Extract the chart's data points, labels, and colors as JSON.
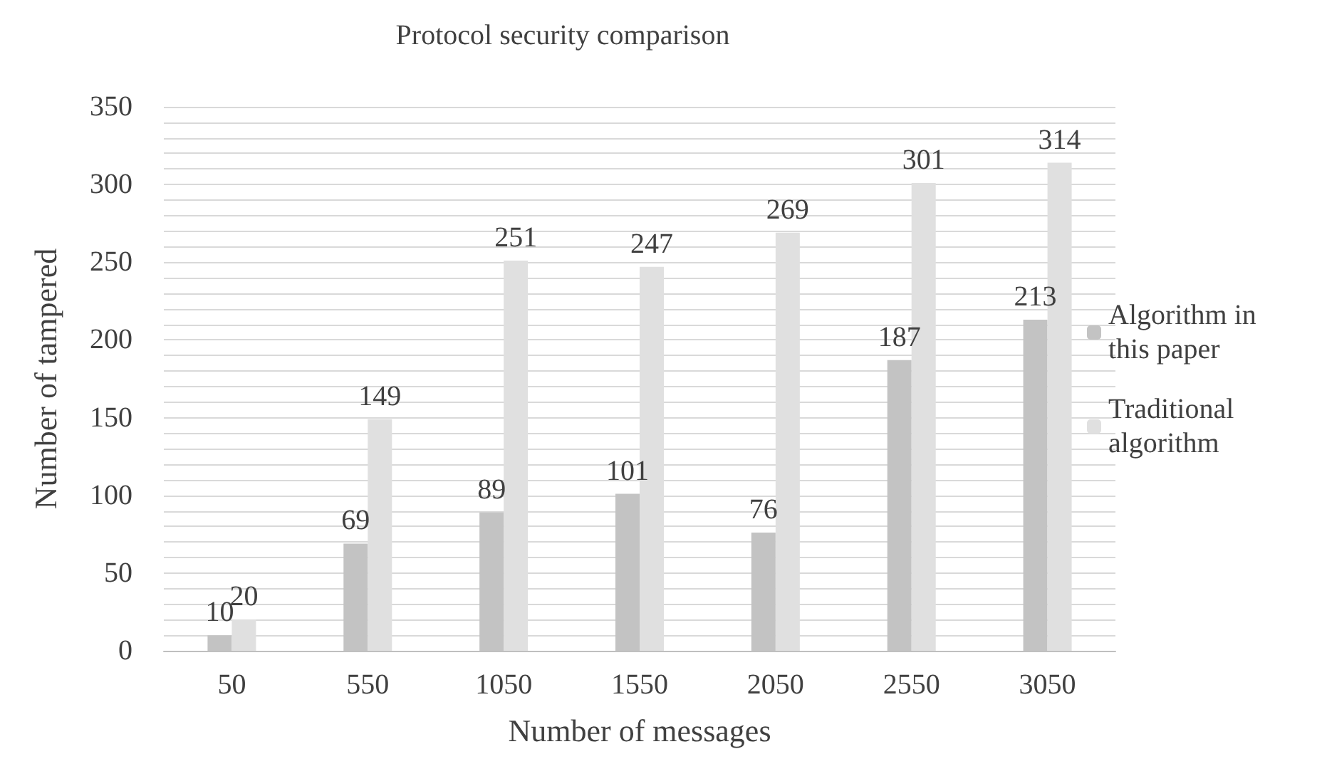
{
  "chart_data": {
    "type": "bar",
    "title": "Protocol security comparison",
    "xlabel": "Number of messages",
    "ylabel": "Number of tampered",
    "categories": [
      "50",
      "550",
      "1050",
      "1550",
      "2050",
      "2550",
      "3050"
    ],
    "series": [
      {
        "name": "Algorithm in this paper",
        "color": "#c3c3c3",
        "values": [
          10,
          69,
          89,
          101,
          76,
          187,
          213
        ]
      },
      {
        "name": "Traditional algorithm",
        "color": "#e0e0e0",
        "values": [
          20,
          149,
          251,
          247,
          269,
          301,
          314
        ]
      }
    ],
    "ylim": [
      0,
      350
    ],
    "yticks": [
      0,
      {
        "value": 10,
        "label": null
      },
      {
        "value": 20,
        "label": null
      },
      {
        "value": 30,
        "label": null
      },
      {
        "value": 40,
        "label": null
      },
      50,
      {
        "value": 60,
        "label": null
      },
      {
        "value": 70,
        "label": null
      },
      {
        "value": 80,
        "label": null
      },
      {
        "value": 90,
        "label": null
      },
      100,
      {
        "value": 110,
        "label": null
      },
      {
        "value": 120,
        "label": null
      },
      {
        "value": 130,
        "label": null
      },
      {
        "value": 140,
        "label": null
      },
      150,
      {
        "value": 160,
        "label": null
      },
      {
        "value": 170,
        "label": null
      },
      {
        "value": 180,
        "label": null
      },
      {
        "value": 190,
        "label": null
      },
      200,
      {
        "value": 210,
        "label": null
      },
      {
        "value": 220,
        "label": null
      },
      {
        "value": 230,
        "label": null
      },
      {
        "value": 240,
        "label": null
      },
      250,
      {
        "value": 260,
        "label": null
      },
      {
        "value": 270,
        "label": null
      },
      {
        "value": 280,
        "label": null
      },
      {
        "value": 290,
        "label": null
      },
      300,
      {
        "value": 310,
        "label": null
      },
      {
        "value": 320,
        "label": null
      },
      {
        "value": 330,
        "label": null
      },
      {
        "value": 340,
        "label": null
      },
      350
    ],
    "grid": "y",
    "legend": "right",
    "data_labels": true
  }
}
